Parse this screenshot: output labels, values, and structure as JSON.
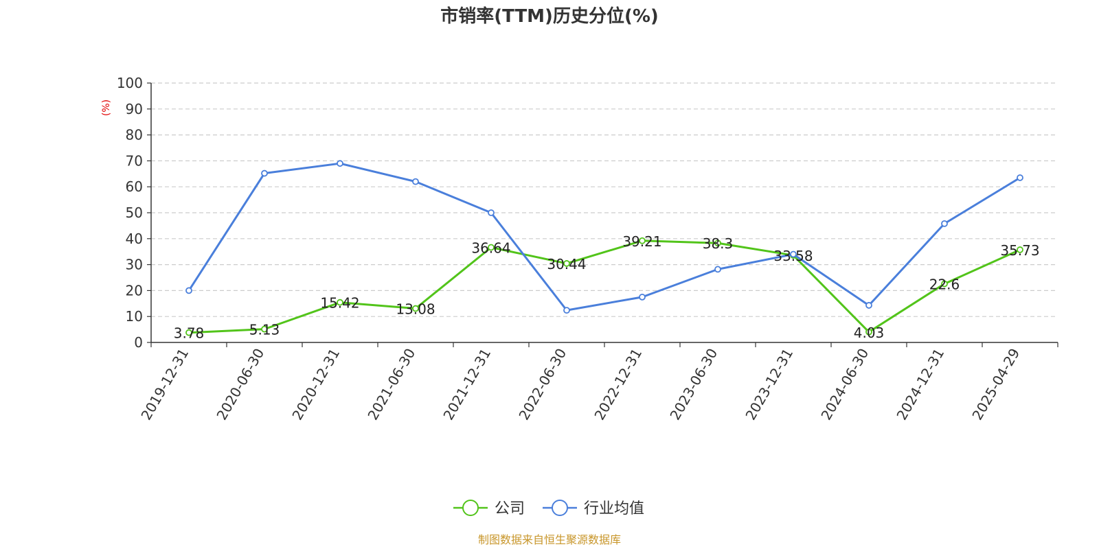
{
  "chart_data": {
    "type": "line",
    "title": "市销率(TTM)历史分位(%)",
    "ylabel": "(%)",
    "ylim": [
      0,
      100
    ],
    "yticks": [
      0,
      10,
      20,
      30,
      40,
      50,
      60,
      70,
      80,
      90,
      100
    ],
    "grid": true,
    "legend_position": "bottom",
    "categories": [
      "2019-12-31",
      "2020-06-30",
      "2020-12-31",
      "2021-06-30",
      "2021-12-31",
      "2022-06-30",
      "2022-12-31",
      "2023-06-30",
      "2023-12-31",
      "2024-06-30",
      "2024-12-31",
      "2025-04-29"
    ],
    "series": [
      {
        "name": "公司",
        "color": "#52c41a",
        "values": [
          3.78,
          5.13,
          15.42,
          13.08,
          36.64,
          30.44,
          39.21,
          38.3,
          33.58,
          4.03,
          22.6,
          35.73
        ],
        "labels": [
          "3.78",
          "5.13",
          "15.42",
          "13.08",
          "36.64",
          "30.44",
          "39.21",
          "38.3",
          "33.58",
          "4.03",
          "22.6",
          "35.73"
        ]
      },
      {
        "name": "行业均值",
        "color": "#4a7fdb",
        "values": [
          20,
          65.2,
          69,
          62,
          50,
          12.4,
          17.5,
          28.2,
          34,
          14.3,
          45.8,
          63.5
        ]
      }
    ],
    "source": "制图数据来自恒生聚源数据库"
  }
}
